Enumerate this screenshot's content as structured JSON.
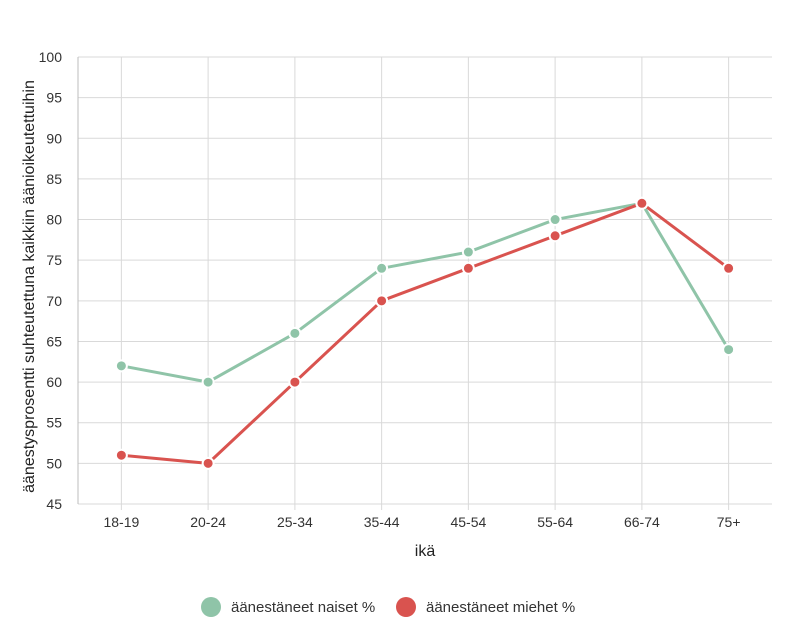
{
  "chart_data": {
    "type": "line",
    "xlabel": "ikä",
    "ylabel": "äänestysprosentti suhteutettuna kaikkiin äänioikeutettuihin",
    "categories": [
      "18-19",
      "20-24",
      "25-34",
      "35-44",
      "45-54",
      "55-64",
      "66-74",
      "75+"
    ],
    "yticks": [
      45,
      50,
      55,
      60,
      65,
      70,
      75,
      80,
      85,
      90,
      95,
      100
    ],
    "ylim": [
      45,
      100
    ],
    "grid": true,
    "legend_position": "bottom",
    "series": [
      {
        "name": "äänestäneet naiset %",
        "color": "#8fc4a8",
        "values": [
          62,
          60,
          66,
          74,
          76,
          80,
          82,
          64
        ]
      },
      {
        "name": "äänestäneet miehet %",
        "color": "#d9534f",
        "values": [
          51,
          50,
          60,
          70,
          74,
          78,
          82,
          74
        ]
      }
    ]
  }
}
